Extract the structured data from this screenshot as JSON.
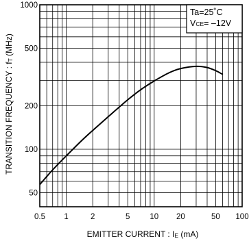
{
  "chart_data": {
    "type": "line",
    "title": "",
    "xlabel": {
      "main": "EMITTER CURRENT : I",
      "sub": "E",
      "unit": " (mA)"
    },
    "ylabel": {
      "main": "TRANSITION FREQUENCY : f",
      "sub": "T",
      "unit": " (MHz)"
    },
    "x_scale": "log",
    "y_scale": "log",
    "xlim": [
      0.5,
      100
    ],
    "ylim": [
      40,
      1000
    ],
    "x_ticks": [
      0.5,
      1,
      2,
      5,
      10,
      20,
      50,
      100
    ],
    "x_tick_labels": [
      "0.5",
      "1",
      "2",
      "5",
      "10",
      "20",
      "50",
      "100"
    ],
    "y_ticks": [
      50,
      100,
      200,
      500,
      1000
    ],
    "y_tick_labels": [
      "50",
      "100",
      "200",
      "500",
      "1000"
    ],
    "grid": true,
    "legend": {
      "placement": "top-right",
      "lines": [
        {
          "main": "Ta=25˚C",
          "sub": "",
          "rest": ""
        },
        {
          "main": "V",
          "sub": "CE",
          "rest": "= –12V"
        }
      ]
    },
    "series": [
      {
        "x": [
          0.5,
          0.7,
          1,
          1.5,
          2,
          3,
          5,
          7,
          10,
          15,
          20,
          30,
          40,
          50,
          60
        ],
        "y": [
          57,
          72,
          90,
          115,
          135,
          168,
          220,
          258,
          297,
          340,
          362,
          375,
          368,
          350,
          330
        ]
      }
    ]
  }
}
